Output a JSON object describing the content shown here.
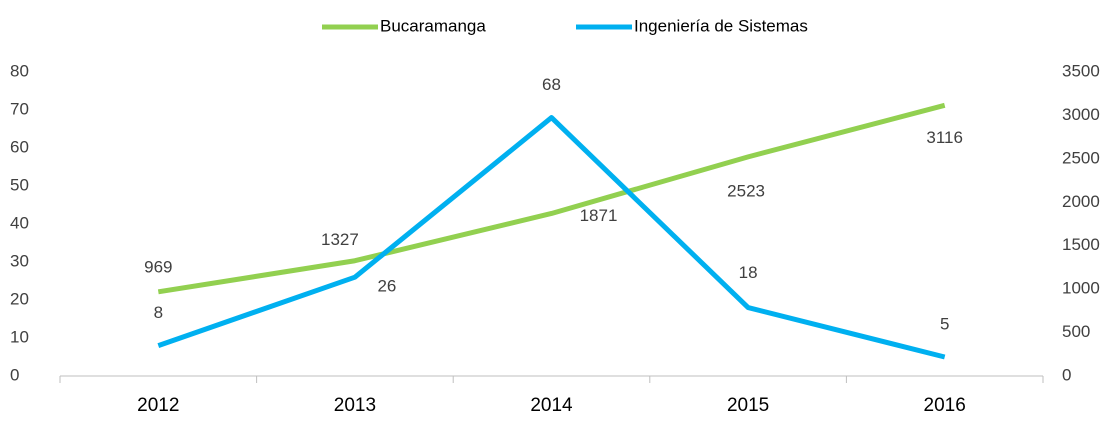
{
  "chart_data": {
    "type": "line",
    "categories": [
      "2012",
      "2013",
      "2014",
      "2015",
      "2016"
    ],
    "series": [
      {
        "name": "Bucaramanga",
        "color": "#92d050",
        "axis": "y2",
        "values": [
          969,
          1327,
          1871,
          2523,
          3116
        ]
      },
      {
        "name": "Ingeniería de Sistemas",
        "color": "#00b0f0",
        "values": [
          8,
          26,
          68,
          18,
          5
        ]
      }
    ],
    "ylim": [
      0,
      80
    ],
    "yticks": [
      0,
      10,
      20,
      30,
      40,
      50,
      60,
      70,
      80
    ],
    "y2lim": [
      0,
      3500
    ],
    "y2ticks": [
      0,
      500,
      1000,
      1500,
      2000,
      2500,
      3000,
      3500
    ],
    "legend": "top",
    "grid": false
  }
}
